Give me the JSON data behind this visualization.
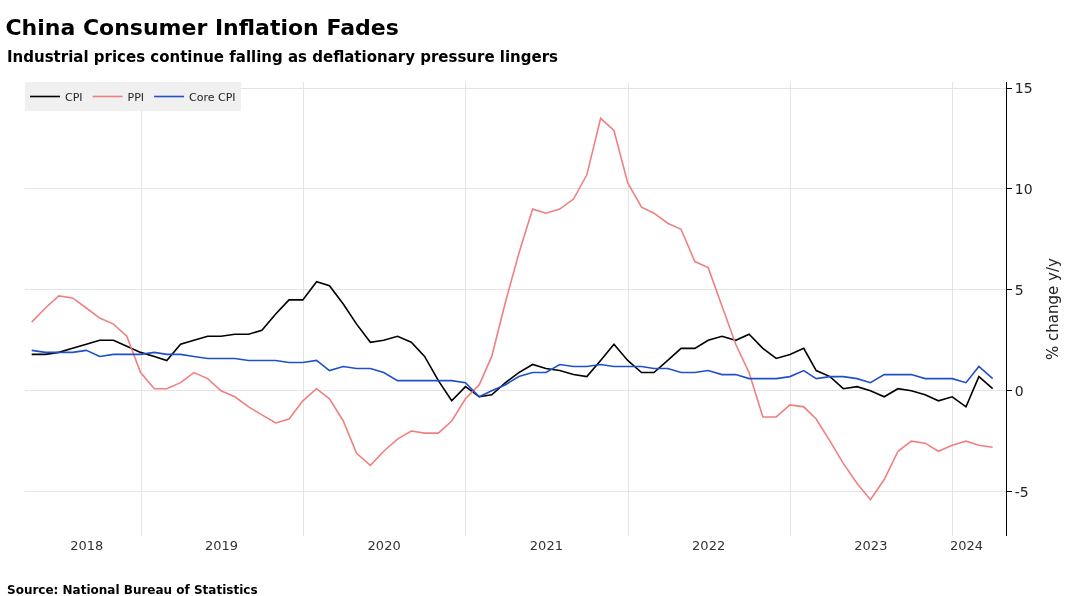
{
  "chart_data": {
    "type": "line",
    "title": "China Consumer Inflation Fades",
    "subtitle": "Industrial prices continue falling as deflationary pressure lingers",
    "ylabel": "% change y/y",
    "annotations": [
      "Source: National Bureau of Statistics"
    ],
    "x": [
      "2018-04-30",
      "2018-05-31",
      "2018-06-30",
      "2018-07-31",
      "2018-08-31",
      "2018-09-30",
      "2018-10-31",
      "2018-11-30",
      "2018-12-31",
      "2019-01-31",
      "2019-02-28",
      "2019-03-31",
      "2019-04-30",
      "2019-05-31",
      "2019-06-30",
      "2019-07-31",
      "2019-08-31",
      "2019-09-30",
      "2019-10-31",
      "2019-11-30",
      "2019-12-31",
      "2020-01-31",
      "2020-02-29",
      "2020-03-31",
      "2020-04-30",
      "2020-05-31",
      "2020-06-30",
      "2020-07-31",
      "2020-08-31",
      "2020-09-30",
      "2020-10-31",
      "2020-11-30",
      "2020-12-31",
      "2021-01-31",
      "2021-02-28",
      "2021-03-31",
      "2021-04-30",
      "2021-05-31",
      "2021-06-30",
      "2021-07-31",
      "2021-08-31",
      "2021-09-30",
      "2021-10-31",
      "2021-11-30",
      "2021-12-31",
      "2022-01-31",
      "2022-02-28",
      "2022-03-31",
      "2022-04-30",
      "2022-05-31",
      "2022-06-30",
      "2022-07-31",
      "2022-08-31",
      "2022-09-30",
      "2022-10-31",
      "2022-11-30",
      "2022-12-31",
      "2023-01-31",
      "2023-02-28",
      "2023-03-31",
      "2023-04-30",
      "2023-05-31",
      "2023-06-30",
      "2023-07-31",
      "2023-08-31",
      "2023-09-30",
      "2023-10-31",
      "2023-11-30",
      "2023-12-31",
      "2024-01-31",
      "2024-02-29",
      "2024-03-31"
    ],
    "series": [
      {
        "name": "CPI",
        "color": "#000000",
        "values": [
          1.8,
          1.8,
          1.9,
          2.1,
          2.3,
          2.5,
          2.5,
          2.2,
          1.9,
          1.7,
          1.5,
          2.3,
          2.5,
          2.7,
          2.7,
          2.8,
          2.8,
          3.0,
          3.8,
          4.5,
          4.5,
          5.4,
          5.2,
          4.3,
          3.3,
          2.4,
          2.5,
          2.7,
          2.4,
          1.7,
          0.5,
          -0.5,
          0.2,
          -0.3,
          -0.2,
          0.4,
          0.9,
          1.3,
          1.1,
          1.0,
          0.8,
          0.7,
          1.5,
          2.3,
          1.5,
          0.9,
          0.9,
          1.5,
          2.1,
          2.1,
          2.5,
          2.7,
          2.5,
          2.8,
          2.1,
          1.6,
          1.8,
          2.1,
          1.0,
          0.7,
          0.1,
          0.2,
          0.0,
          -0.3,
          0.1,
          0.0,
          -0.2,
          -0.5,
          -0.3,
          -0.8,
          0.7,
          0.1
        ]
      },
      {
        "name": "PPI",
        "color": "#f08080",
        "values": [
          3.4,
          4.1,
          4.7,
          4.6,
          4.1,
          3.6,
          3.3,
          2.7,
          0.9,
          0.1,
          0.1,
          0.4,
          0.9,
          0.6,
          0.0,
          -0.3,
          -0.8,
          -1.2,
          -1.6,
          -1.4,
          -0.5,
          0.1,
          -0.4,
          -1.5,
          -3.1,
          -3.7,
          -3.0,
          -2.4,
          -2.0,
          -2.1,
          -2.1,
          -1.5,
          -0.4,
          0.3,
          1.7,
          4.4,
          6.8,
          9.0,
          8.8,
          9.0,
          9.5,
          10.7,
          13.5,
          12.9,
          10.3,
          9.1,
          8.8,
          8.3,
          8.0,
          6.4,
          6.1,
          4.2,
          2.3,
          0.9,
          -1.3,
          -1.3,
          -0.7,
          -0.8,
          -1.4,
          -2.5,
          -3.6,
          -4.6,
          -5.4,
          -4.4,
          -3.0,
          -2.5,
          -2.6,
          -3.0,
          -2.7,
          -2.5,
          -2.7,
          -2.8
        ]
      },
      {
        "name": "Core CPI",
        "color": "#2050c8",
        "values": [
          2.0,
          1.9,
          1.9,
          1.9,
          2.0,
          1.7,
          1.8,
          1.8,
          1.8,
          1.9,
          1.8,
          1.8,
          1.7,
          1.6,
          1.6,
          1.6,
          1.5,
          1.5,
          1.5,
          1.4,
          1.4,
          1.5,
          1.0,
          1.2,
          1.1,
          1.1,
          0.9,
          0.5,
          0.5,
          0.5,
          0.5,
          0.5,
          0.4,
          -0.3,
          0.0,
          0.3,
          0.7,
          0.9,
          0.9,
          1.3,
          1.2,
          1.2,
          1.3,
          1.2,
          1.2,
          1.2,
          1.1,
          1.1,
          0.9,
          0.9,
          1.0,
          0.8,
          0.8,
          0.6,
          0.6,
          0.6,
          0.7,
          1.0,
          0.6,
          0.7,
          0.7,
          0.6,
          0.4,
          0.8,
          0.8,
          0.8,
          0.6,
          0.6,
          0.6,
          0.4,
          1.2,
          0.6
        ]
      }
    ],
    "xlim": [
      "2018-04-15",
      "2024-04-30"
    ],
    "xticks": [
      {
        "value": "2018-09-01",
        "label": "2018"
      },
      {
        "value": "2019-07-01",
        "label": "2019"
      },
      {
        "value": "2020-07-01",
        "label": "2020"
      },
      {
        "value": "2021-07-01",
        "label": "2021"
      },
      {
        "value": "2022-07-01",
        "label": "2022"
      },
      {
        "value": "2023-07-01",
        "label": "2023"
      },
      {
        "value": "2024-02-01",
        "label": "2024"
      },
      {
        "value": "2019-01-01",
        "label": null
      },
      {
        "value": "2020-01-01",
        "label": null
      },
      {
        "value": "2021-01-01",
        "label": null
      },
      {
        "value": "2022-01-01",
        "label": null
      },
      {
        "value": "2023-01-01",
        "label": null
      },
      {
        "value": "2024-01-01",
        "label": null
      }
    ],
    "ylim": [
      -7.2,
      15.3
    ],
    "yticks": [
      -5,
      0,
      5,
      10,
      15
    ],
    "grid": true,
    "legend": "top left",
    "line_style": "solid",
    "marker": "none"
  }
}
